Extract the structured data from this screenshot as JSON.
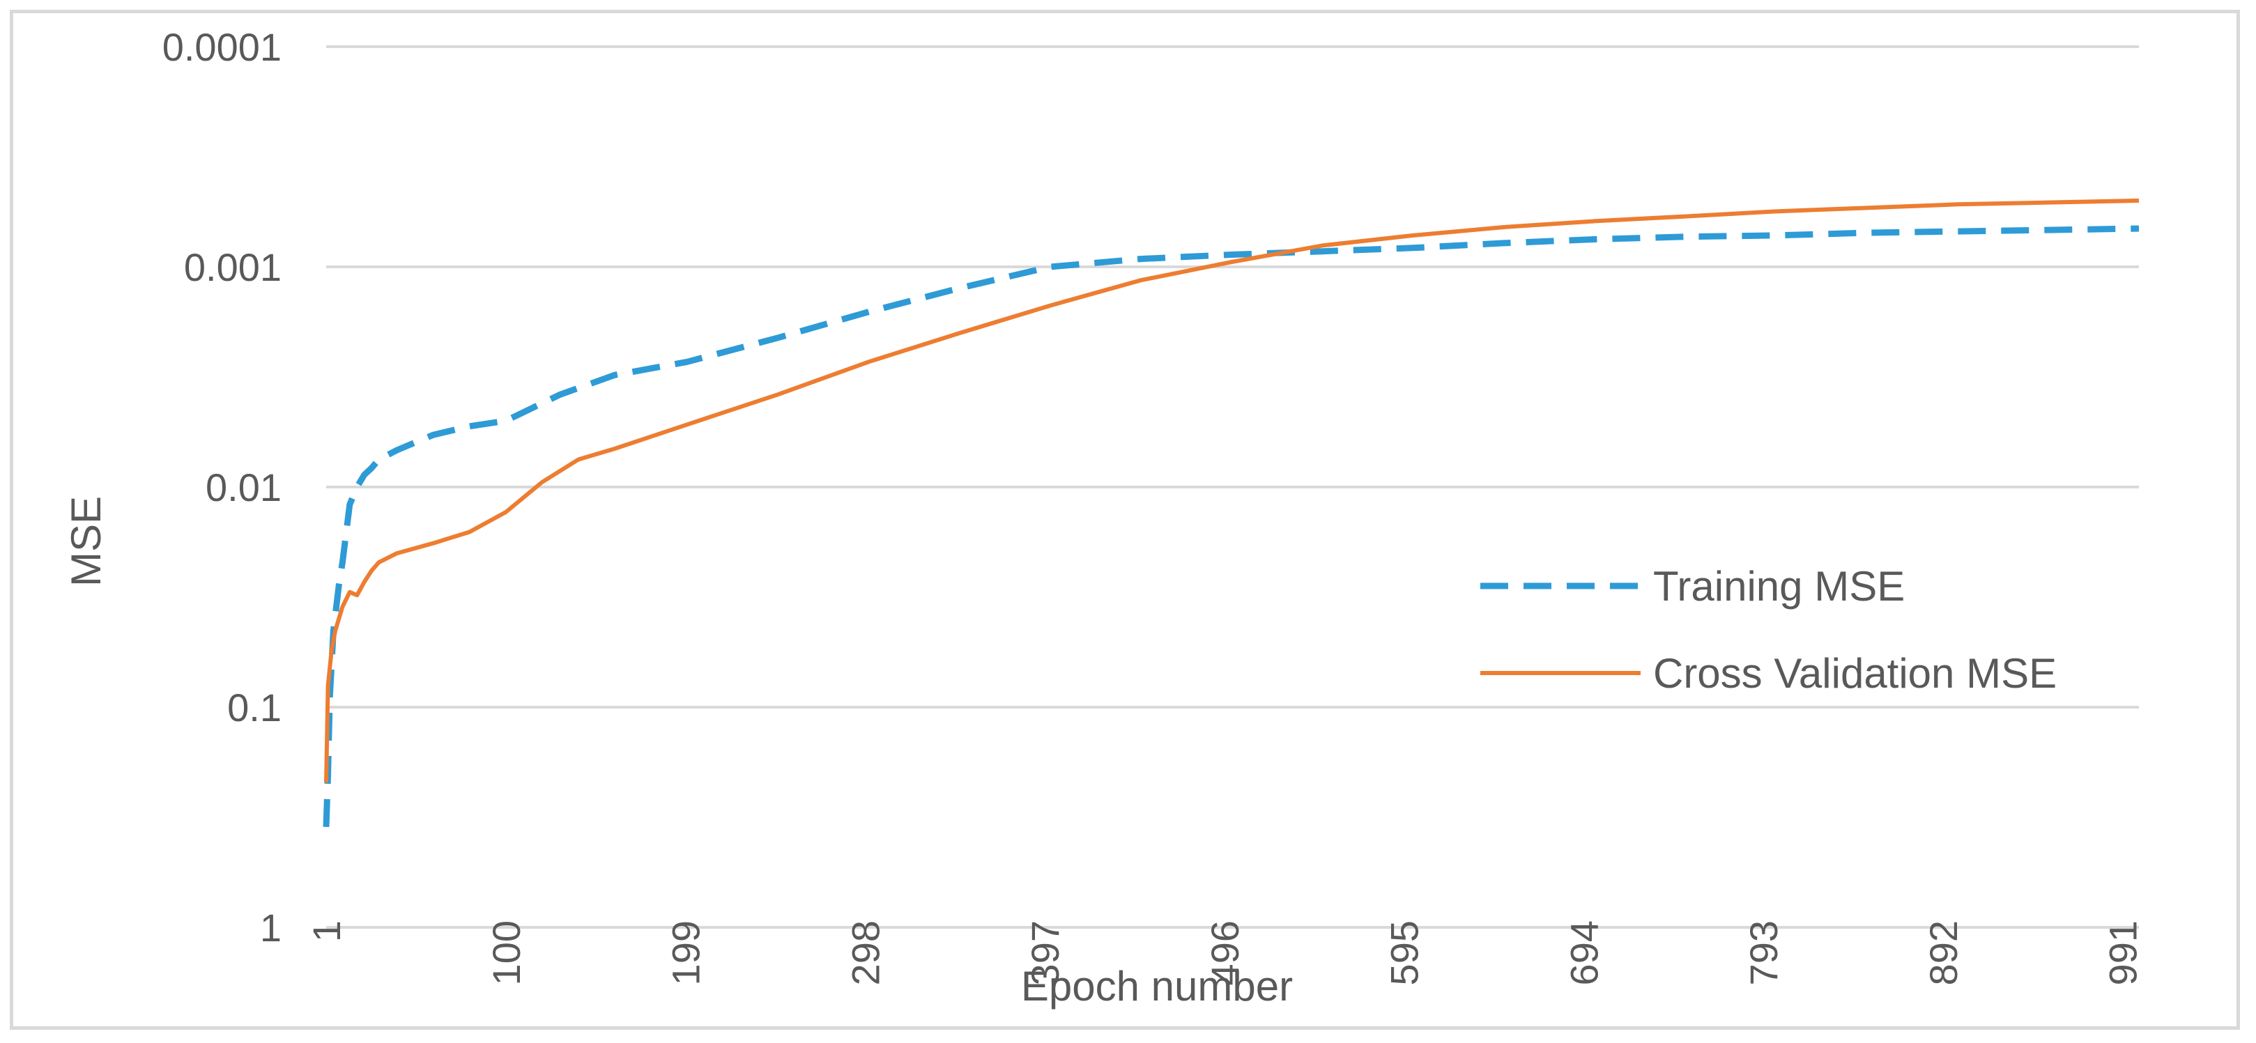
{
  "chart_data": {
    "type": "line",
    "title": "",
    "xlabel": "Epoch number",
    "ylabel": "MSE",
    "y_scale": "log",
    "y_reversed": true,
    "ylim": [
      1,
      0.0001
    ],
    "xlim": [
      1,
      1000
    ],
    "grid": true,
    "legend_position": "right",
    "x_tick_labels": [
      "1",
      "100",
      "199",
      "298",
      "397",
      "496",
      "595",
      "694",
      "793",
      "892",
      "991"
    ],
    "y_tick_labels": [
      "0.0001",
      "0.001",
      "0.01",
      "0.1",
      "1"
    ],
    "series": [
      {
        "name": "Training MSE",
        "color": "#2e9bd6",
        "dash": "dashed",
        "x": [
          1,
          2,
          3,
          5,
          8,
          10,
          14,
          18,
          22,
          26,
          30,
          40,
          60,
          80,
          100,
          130,
          160,
          200,
          250,
          300,
          350,
          400,
          450,
          500,
          550,
          600,
          650,
          700,
          750,
          800,
          850,
          900,
          950,
          1000
        ],
        "y": [
          0.35,
          0.2,
          0.09,
          0.045,
          0.028,
          0.022,
          0.012,
          0.01,
          0.0088,
          0.0082,
          0.0075,
          0.0068,
          0.0058,
          0.0053,
          0.005,
          0.0038,
          0.0031,
          0.0027,
          0.0021,
          0.0016,
          0.00125,
          0.001,
          0.00092,
          0.00088,
          0.00085,
          0.00082,
          0.00078,
          0.00075,
          0.00073,
          0.00072,
          0.0007,
          0.00069,
          0.00068,
          0.00067
        ]
      },
      {
        "name": "Cross Validation MSE",
        "color": "#ed7d31",
        "dash": "solid",
        "x": [
          1,
          2,
          4,
          6,
          10,
          14,
          18,
          22,
          26,
          30,
          40,
          60,
          80,
          100,
          120,
          140,
          160,
          200,
          250,
          300,
          350,
          400,
          450,
          500,
          550,
          600,
          650,
          700,
          750,
          800,
          850,
          900,
          950,
          1000
        ],
        "y": [
          0.22,
          0.08,
          0.055,
          0.045,
          0.035,
          0.03,
          0.031,
          0.027,
          0.024,
          0.022,
          0.02,
          0.018,
          0.016,
          0.013,
          0.0095,
          0.0075,
          0.0067,
          0.0052,
          0.0038,
          0.0027,
          0.002,
          0.0015,
          0.00115,
          0.00095,
          0.0008,
          0.00072,
          0.00066,
          0.00062,
          0.00059,
          0.00056,
          0.00054,
          0.00052,
          0.00051,
          0.0005
        ]
      }
    ]
  }
}
